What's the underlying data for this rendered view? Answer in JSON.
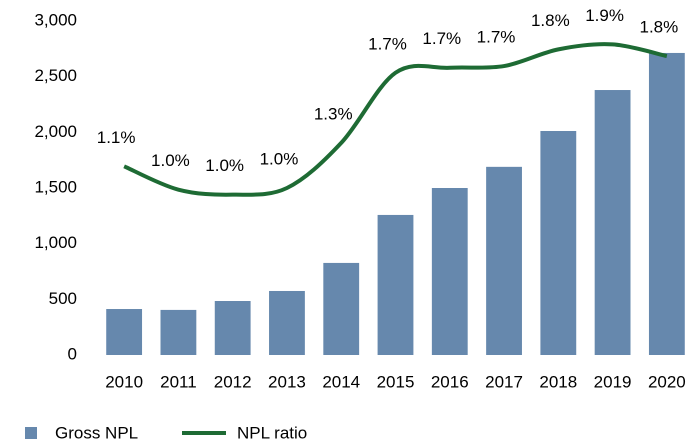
{
  "chart_data": {
    "type": "bar",
    "categories": [
      "2010",
      "2011",
      "2012",
      "2013",
      "2014",
      "2015",
      "2016",
      "2017",
      "2018",
      "2019",
      "2020"
    ],
    "series": [
      {
        "name": "Gross NPL",
        "color": "#6688ad",
        "values": [
          413,
          405,
          485,
          575,
          827,
          1258,
          1500,
          1690,
          2012,
          2380,
          2713
        ]
      },
      {
        "name": "NPL ratio",
        "type": "line",
        "axis": "y2",
        "color": "#1e6b34",
        "values": [
          1.13,
          0.99,
          0.96,
          1.0,
          1.27,
          1.69,
          1.72,
          1.73,
          1.83,
          1.86,
          1.79
        ],
        "value_labels": [
          "1.1%",
          "1.0%",
          "1.0%",
          "1.0%",
          "1.3%",
          "1.7%",
          "1.7%",
          "1.7%",
          "1.8%",
          "1.9%",
          "1.8%"
        ]
      }
    ],
    "ylim": [
      0,
      3000
    ],
    "yticks": [
      0,
      {
        "value": 500,
        "label": "500"
      },
      {
        "value": 1000,
        "label": "1,000"
      },
      {
        "value": 1500,
        "label": "1,500"
      },
      {
        "value": 2000,
        "label": "2,000"
      },
      {
        "value": 2500,
        "label": "2,500"
      },
      {
        "value": 3000,
        "label": "3,000"
      }
    ],
    "y2lim": [
      0,
      2.0
    ],
    "grid": false
  }
}
